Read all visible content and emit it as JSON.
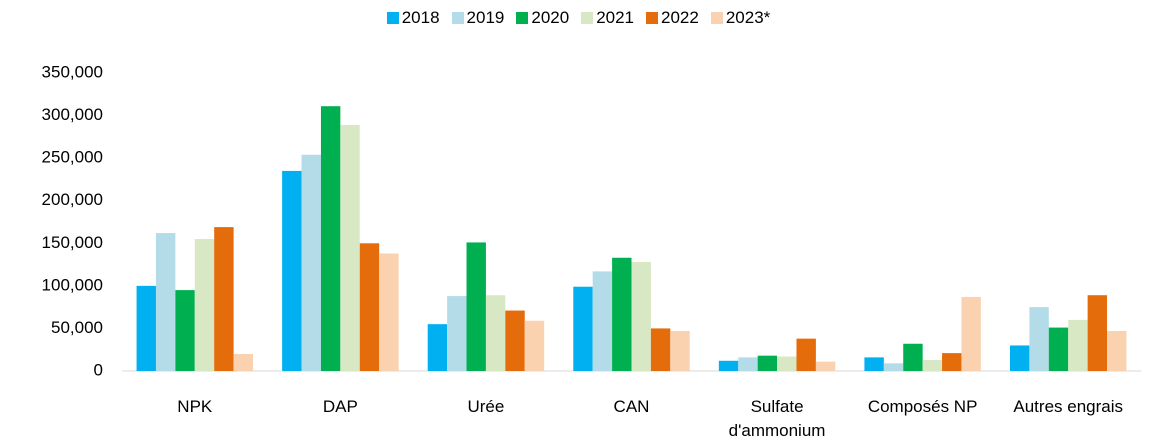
{
  "chart_data": {
    "type": "bar",
    "categories": [
      "NPK",
      "DAP",
      "Urée",
      "CAN",
      "Sulfate d'ammonium",
      "Composés NP",
      "Autres engrais"
    ],
    "series": [
      {
        "name": "2018",
        "color": "#00b0f0",
        "values": [
          100000,
          235000,
          55000,
          99000,
          12000,
          16000,
          30000
        ]
      },
      {
        "name": "2019",
        "color": "#b4dce8",
        "values": [
          162000,
          254000,
          88000,
          117000,
          16000,
          9000,
          75000
        ]
      },
      {
        "name": "2020",
        "color": "#00b050",
        "values": [
          95000,
          311000,
          151000,
          133000,
          18000,
          32000,
          51000
        ]
      },
      {
        "name": "2021",
        "color": "#d9e8c4",
        "values": [
          155000,
          289000,
          89000,
          128000,
          17000,
          13000,
          60000
        ]
      },
      {
        "name": "2022",
        "color": "#e46c0a",
        "values": [
          169000,
          150000,
          71000,
          50000,
          38000,
          21000,
          89000
        ]
      },
      {
        "name": "2023*",
        "color": "#fbd2b0",
        "values": [
          20000,
          138000,
          59000,
          47000,
          11000,
          87000,
          47000
        ]
      }
    ],
    "ylim": [
      0,
      350000
    ],
    "yticks": [
      {
        "value": 0,
        "label": "0"
      },
      {
        "value": 50000,
        "label": "50,000"
      },
      {
        "value": 100000,
        "label": "100,000"
      },
      {
        "value": 150000,
        "label": "150,000"
      },
      {
        "value": 200000,
        "label": "200,000"
      },
      {
        "value": 250000,
        "label": "250,000"
      },
      {
        "value": 300000,
        "label": "300,000"
      },
      {
        "value": 350000,
        "label": "350,000"
      }
    ],
    "legend": "top",
    "grid": false
  }
}
